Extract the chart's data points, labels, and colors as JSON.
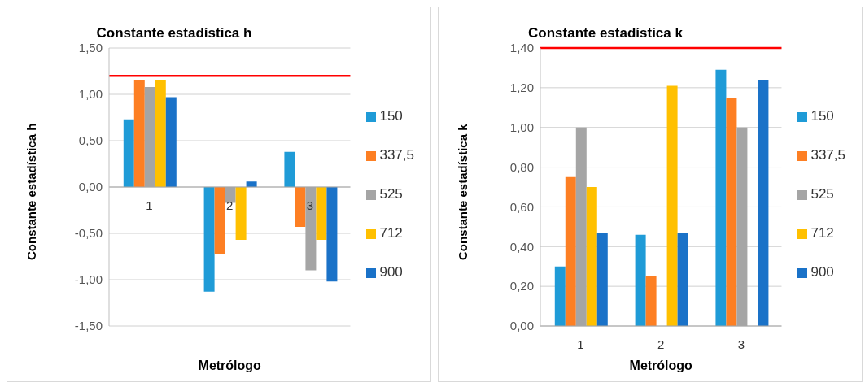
{
  "chart_data": [
    {
      "type": "bar",
      "title": "Constante estadística h",
      "xlabel": "Metrólogo",
      "ylabel": "Constante estadística h",
      "categories": [
        "1",
        "2",
        "3"
      ],
      "series": [
        {
          "name": "150",
          "color": "#1f9bd7",
          "values": [
            0.73,
            -1.13,
            0.38
          ]
        },
        {
          "name": "337,5",
          "color": "#fd7f23",
          "values": [
            1.15,
            -0.72,
            -0.43
          ]
        },
        {
          "name": "525",
          "color": "#a5a5a5",
          "values": [
            1.08,
            -0.17,
            -0.9
          ]
        },
        {
          "name": "712",
          "color": "#ffc000",
          "values": [
            1.15,
            -0.57,
            -0.57
          ]
        },
        {
          "name": "900",
          "color": "#1a72c8",
          "values": [
            0.97,
            0.06,
            -1.02
          ]
        }
      ],
      "ylim": [
        -1.5,
        1.5
      ],
      "yticks": [
        {
          "value": -1.5,
          "label": "-1,50"
        },
        {
          "value": -1,
          "label": "-1,00"
        },
        {
          "value": -0.5,
          "label": "-0,50"
        },
        {
          "value": 0,
          "label": "0,00"
        },
        {
          "value": 0.5,
          "label": "0,50"
        },
        {
          "value": 1,
          "label": "1,00"
        },
        {
          "value": 1.5,
          "label": "1,50"
        }
      ],
      "ref_lines": [
        {
          "axis": "y",
          "value": 1.2,
          "color": "#ff0000"
        }
      ],
      "grid": "y",
      "legend": "right"
    },
    {
      "type": "bar",
      "title": "Constante estadística k",
      "xlabel": "Metrólogo",
      "ylabel": "Constante estadística k",
      "categories": [
        "1",
        "2",
        "3"
      ],
      "series": [
        {
          "name": "150",
          "color": "#1f9bd7",
          "values": [
            0.3,
            0.46,
            1.29
          ]
        },
        {
          "name": "337,5",
          "color": "#fd7f23",
          "values": [
            0.75,
            0.25,
            1.15
          ]
        },
        {
          "name": "525",
          "color": "#a5a5a5",
          "values": [
            1.0,
            0,
            1.0
          ]
        },
        {
          "name": "712",
          "color": "#ffc000",
          "values": [
            0.7,
            1.21,
            0
          ]
        },
        {
          "name": "900",
          "color": "#1a72c8",
          "values": [
            0.47,
            0.47,
            1.24
          ]
        }
      ],
      "ylim": [
        0,
        1.4
      ],
      "yticks": [
        {
          "value": 0,
          "label": "0,00"
        },
        {
          "value": 0.2,
          "label": "0,20"
        },
        {
          "value": 0.4,
          "label": "0,40"
        },
        {
          "value": 0.6,
          "label": "0,60"
        },
        {
          "value": 0.8,
          "label": "0,80"
        },
        {
          "value": 1,
          "label": "1,00"
        },
        {
          "value": 1.2,
          "label": "1,20"
        },
        {
          "value": 1.4,
          "label": "1,40"
        }
      ],
      "ref_lines": [
        {
          "axis": "y",
          "value": 1.4,
          "color": "#ff0000"
        }
      ],
      "grid": "y",
      "legend": "right"
    }
  ]
}
